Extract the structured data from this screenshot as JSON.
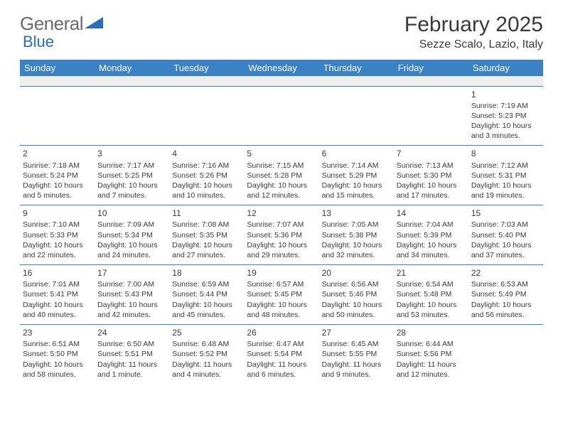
{
  "logo": {
    "text1": "General",
    "text2": "Blue",
    "triangle_color": "#2a6db8"
  },
  "title": "February 2025",
  "location": "Sezze Scalo, Lazio, Italy",
  "colors": {
    "header_bg": "#3a82c4",
    "header_text": "#ffffff",
    "row_border": "#3a82c4",
    "filler_bg": "#eeeeee",
    "body_text": "#3a3a3a"
  },
  "day_headers": [
    "Sunday",
    "Monday",
    "Tuesday",
    "Wednesday",
    "Thursday",
    "Friday",
    "Saturday"
  ],
  "weeks": [
    [
      null,
      null,
      null,
      null,
      null,
      null,
      {
        "n": "1",
        "sr": "7:19 AM",
        "ss": "5:23 PM",
        "dl": "10 hours and 3 minutes."
      }
    ],
    [
      {
        "n": "2",
        "sr": "7:18 AM",
        "ss": "5:24 PM",
        "dl": "10 hours and 5 minutes."
      },
      {
        "n": "3",
        "sr": "7:17 AM",
        "ss": "5:25 PM",
        "dl": "10 hours and 7 minutes."
      },
      {
        "n": "4",
        "sr": "7:16 AM",
        "ss": "5:26 PM",
        "dl": "10 hours and 10 minutes."
      },
      {
        "n": "5",
        "sr": "7:15 AM",
        "ss": "5:28 PM",
        "dl": "10 hours and 12 minutes."
      },
      {
        "n": "6",
        "sr": "7:14 AM",
        "ss": "5:29 PM",
        "dl": "10 hours and 15 minutes."
      },
      {
        "n": "7",
        "sr": "7:13 AM",
        "ss": "5:30 PM",
        "dl": "10 hours and 17 minutes."
      },
      {
        "n": "8",
        "sr": "7:12 AM",
        "ss": "5:31 PM",
        "dl": "10 hours and 19 minutes."
      }
    ],
    [
      {
        "n": "9",
        "sr": "7:10 AM",
        "ss": "5:33 PM",
        "dl": "10 hours and 22 minutes."
      },
      {
        "n": "10",
        "sr": "7:09 AM",
        "ss": "5:34 PM",
        "dl": "10 hours and 24 minutes."
      },
      {
        "n": "11",
        "sr": "7:08 AM",
        "ss": "5:35 PM",
        "dl": "10 hours and 27 minutes."
      },
      {
        "n": "12",
        "sr": "7:07 AM",
        "ss": "5:36 PM",
        "dl": "10 hours and 29 minutes."
      },
      {
        "n": "13",
        "sr": "7:05 AM",
        "ss": "5:38 PM",
        "dl": "10 hours and 32 minutes."
      },
      {
        "n": "14",
        "sr": "7:04 AM",
        "ss": "5:39 PM",
        "dl": "10 hours and 34 minutes."
      },
      {
        "n": "15",
        "sr": "7:03 AM",
        "ss": "5:40 PM",
        "dl": "10 hours and 37 minutes."
      }
    ],
    [
      {
        "n": "16",
        "sr": "7:01 AM",
        "ss": "5:41 PM",
        "dl": "10 hours and 40 minutes."
      },
      {
        "n": "17",
        "sr": "7:00 AM",
        "ss": "5:43 PM",
        "dl": "10 hours and 42 minutes."
      },
      {
        "n": "18",
        "sr": "6:59 AM",
        "ss": "5:44 PM",
        "dl": "10 hours and 45 minutes."
      },
      {
        "n": "19",
        "sr": "6:57 AM",
        "ss": "5:45 PM",
        "dl": "10 hours and 48 minutes."
      },
      {
        "n": "20",
        "sr": "6:56 AM",
        "ss": "5:46 PM",
        "dl": "10 hours and 50 minutes."
      },
      {
        "n": "21",
        "sr": "6:54 AM",
        "ss": "5:48 PM",
        "dl": "10 hours and 53 minutes."
      },
      {
        "n": "22",
        "sr": "6:53 AM",
        "ss": "5:49 PM",
        "dl": "10 hours and 56 minutes."
      }
    ],
    [
      {
        "n": "23",
        "sr": "6:51 AM",
        "ss": "5:50 PM",
        "dl": "10 hours and 58 minutes."
      },
      {
        "n": "24",
        "sr": "6:50 AM",
        "ss": "5:51 PM",
        "dl": "11 hours and 1 minute."
      },
      {
        "n": "25",
        "sr": "6:48 AM",
        "ss": "5:52 PM",
        "dl": "11 hours and 4 minutes."
      },
      {
        "n": "26",
        "sr": "6:47 AM",
        "ss": "5:54 PM",
        "dl": "11 hours and 6 minutes."
      },
      {
        "n": "27",
        "sr": "6:45 AM",
        "ss": "5:55 PM",
        "dl": "11 hours and 9 minutes."
      },
      {
        "n": "28",
        "sr": "6:44 AM",
        "ss": "5:56 PM",
        "dl": "11 hours and 12 minutes."
      },
      null
    ]
  ]
}
